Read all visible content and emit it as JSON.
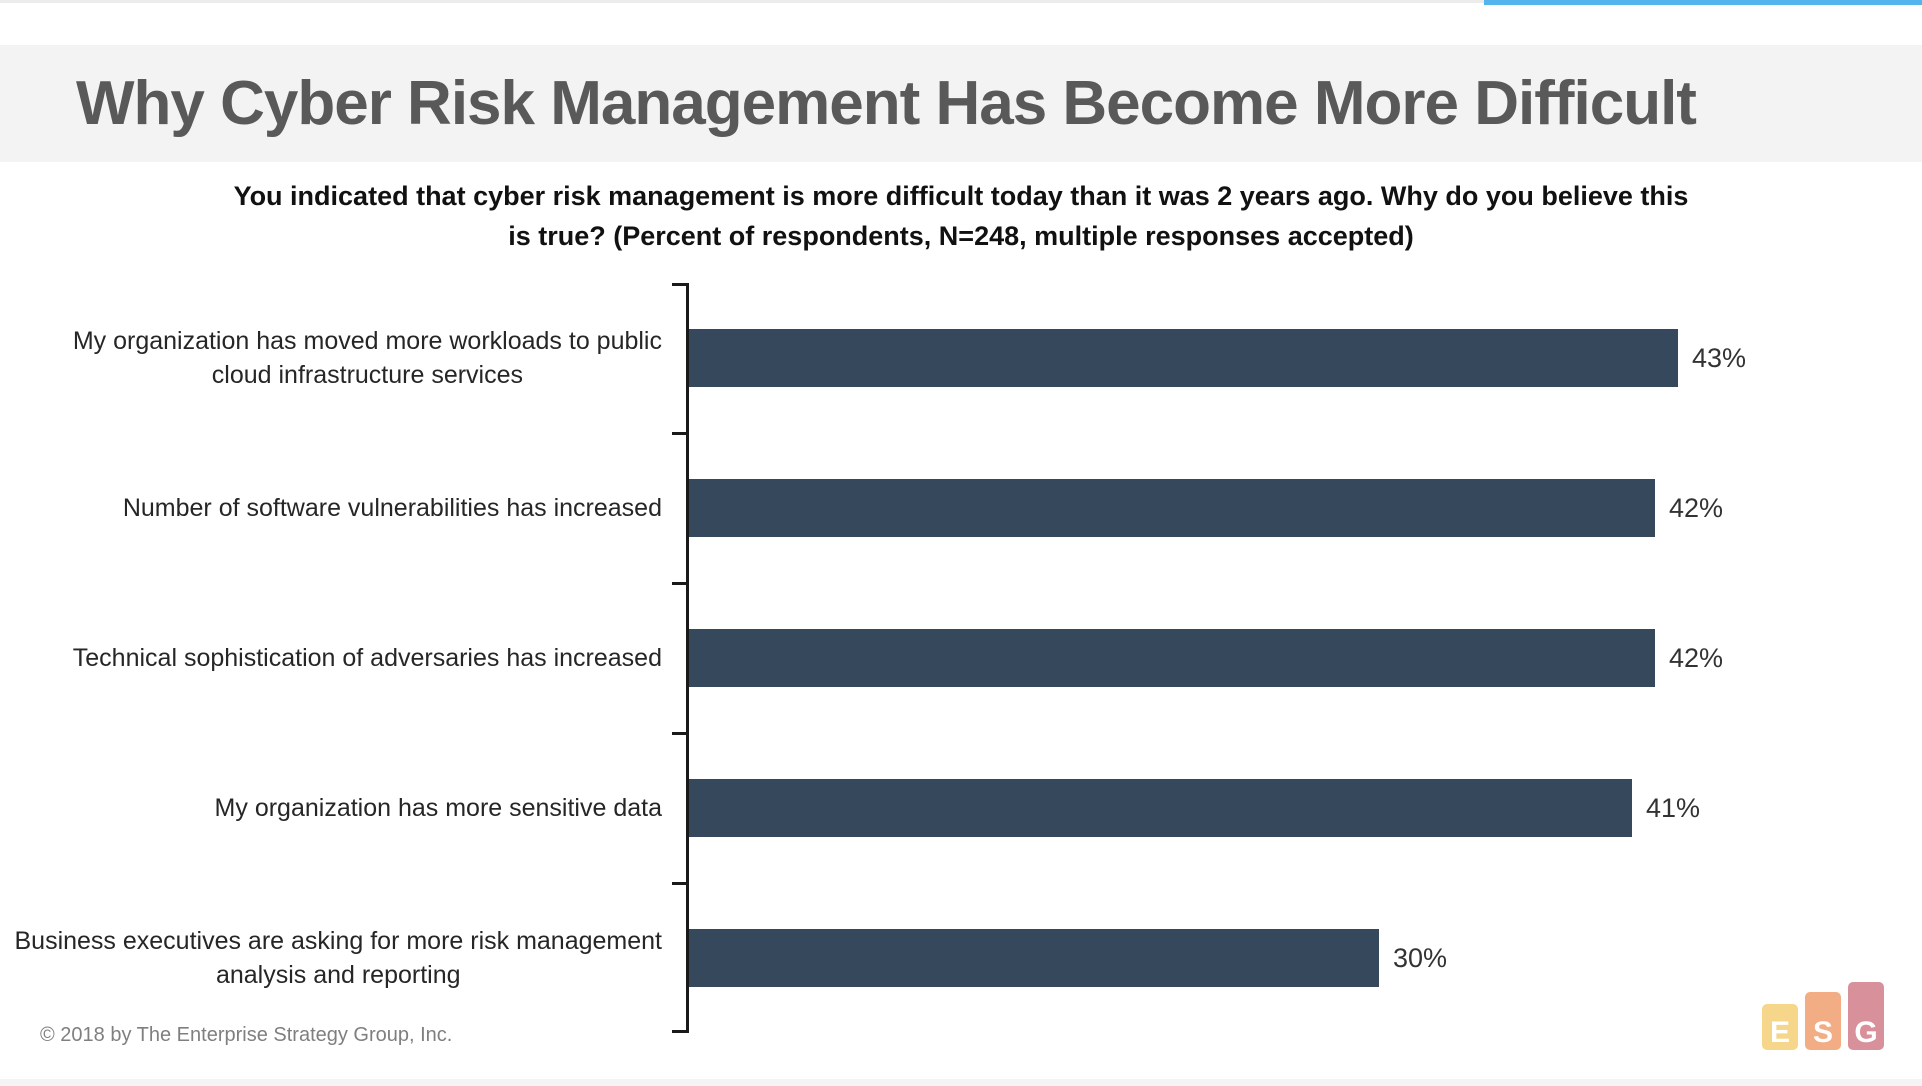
{
  "window": {
    "accent_color": "#54b4ec",
    "hairline_color": "#ececec",
    "header_bg": "#f3f3f3",
    "bottom_strip_color": "#f4f4f4"
  },
  "header": {
    "title": "Why Cyber Risk Management Has Become More Difficult",
    "title_color": "#595959"
  },
  "chart_data": {
    "type": "bar",
    "orientation": "horizontal",
    "title": "You indicated that cyber risk management is more difficult today than it was 2 years ago.  Why do you believe this is true? (Percent of respondents, N=248, multiple responses accepted)",
    "title_lines": [
      "You indicated that cyber risk management is more difficult today than it was 2 years ago.  Why do you believe this",
      "is true? (Percent of respondents, N=248, multiple responses accepted)"
    ],
    "categories": [
      "My organization has moved more workloads to public cloud infrastructure services",
      "Number of software vulnerabilities has increased",
      "Technical sophistication of adversaries has increased",
      "My organization has more sensitive data",
      "Business executives are asking for more risk management analysis and reporting"
    ],
    "label_lines": [
      [
        "My organization has moved more workloads to public",
        "cloud infrastructure services"
      ],
      [
        "Number of software vulnerabilities has increased"
      ],
      [
        "Technical sophistication of adversaries has increased"
      ],
      [
        "My organization has more sensitive data"
      ],
      [
        "Business executives are asking for more risk management",
        "analysis and reporting"
      ]
    ],
    "values": [
      43,
      42,
      42,
      41,
      30
    ],
    "value_labels": [
      "43%",
      "42%",
      "42%",
      "41%",
      "30%"
    ],
    "unit": "percent",
    "bar_color": "#36485c",
    "axis_color": "#1a1a1a",
    "xlim": [
      0,
      53
    ],
    "grid": false,
    "legend": false
  },
  "footer": {
    "copyright": "© 2018 by The Enterprise Strategy Group, Inc."
  },
  "logo": {
    "name": "ESG",
    "letters": [
      "E",
      "S",
      "G"
    ],
    "block_colors": [
      "#f6d68b",
      "#f3ad85",
      "#d8909a"
    ],
    "letter_color": "#ffffff"
  }
}
